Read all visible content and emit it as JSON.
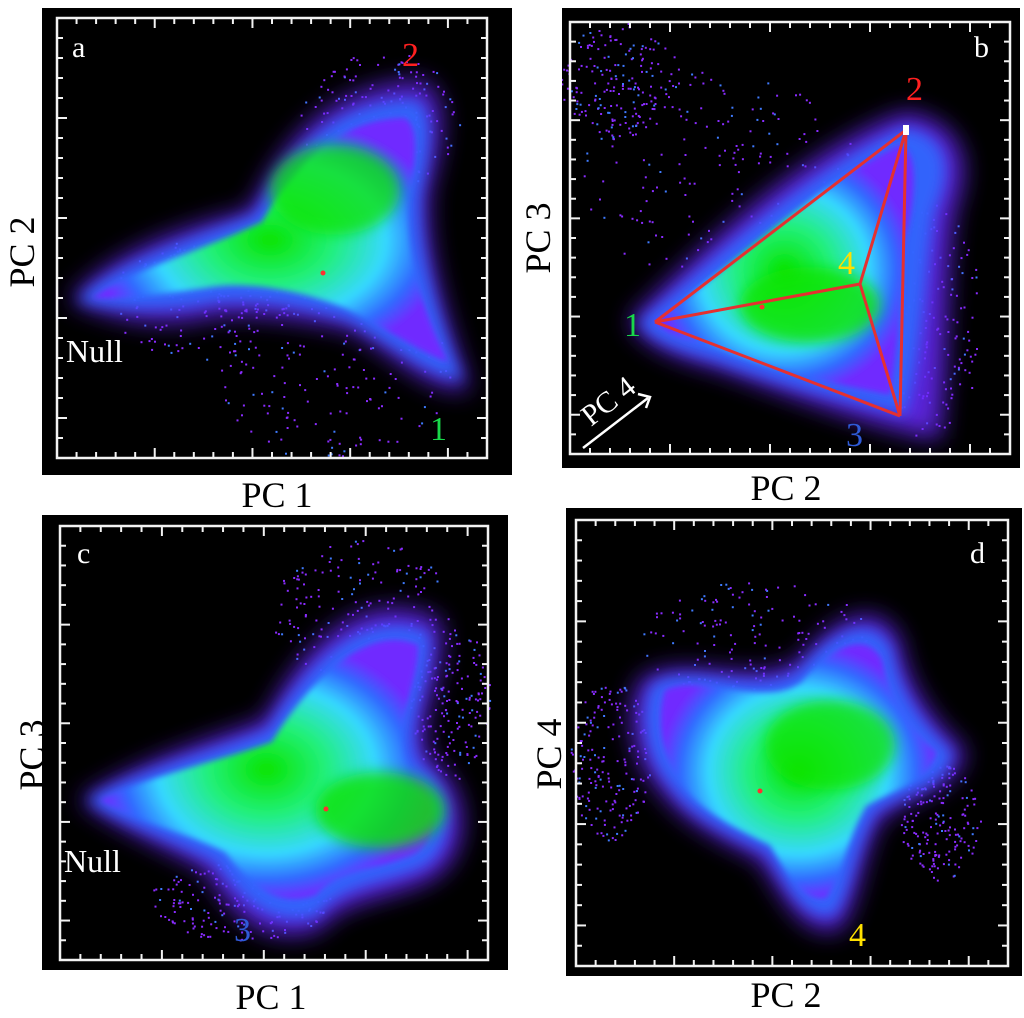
{
  "chart_data": [
    {
      "type": "scatter",
      "panel": "a",
      "xlabel": "PC 1",
      "ylabel": "PC 2",
      "colormap": [
        "#7b2cff",
        "#2f6bff",
        "#35d7ff",
        "#19f07a",
        "#06e000"
      ],
      "annotations": [
        {
          "text": "2",
          "color": "#ff2020",
          "position": "top-right"
        },
        {
          "text": "1",
          "color": "#19d84a",
          "position": "bottom-right"
        },
        {
          "text": "Null",
          "color": "#ffffff",
          "position": "left"
        }
      ]
    },
    {
      "type": "scatter",
      "panel": "b",
      "xlabel": "PC 2",
      "ylabel": "PC 3",
      "colormap": [
        "#7b2cff",
        "#2f6bff",
        "#35d7ff",
        "#19f07a",
        "#06e000"
      ],
      "annotations": [
        {
          "text": "2",
          "color": "#ff2020",
          "position": "top-right"
        },
        {
          "text": "1",
          "color": "#19d84a",
          "position": "left"
        },
        {
          "text": "3",
          "color": "#2f5bd8",
          "position": "bottom-right"
        },
        {
          "text": "4",
          "color": "#ffe000",
          "position": "center"
        },
        {
          "text": "PC 4",
          "color": "#ffffff",
          "position": "bottom-left-arrow"
        }
      ],
      "overlay": "red tetrahedron edges connecting vertices 1, 2, 3 and 4"
    },
    {
      "type": "scatter",
      "panel": "c",
      "xlabel": "PC 1",
      "ylabel": "PC 3",
      "colormap": [
        "#7b2cff",
        "#2f6bff",
        "#35d7ff",
        "#19f07a",
        "#06e000"
      ],
      "annotations": [
        {
          "text": "3",
          "color": "#2f5bd8",
          "position": "bottom"
        },
        {
          "text": "Null",
          "color": "#ffffff",
          "position": "left"
        }
      ]
    },
    {
      "type": "scatter",
      "panel": "d",
      "xlabel": "PC 2",
      "ylabel": "PC 4",
      "colormap": [
        "#7b2cff",
        "#2f6bff",
        "#35d7ff",
        "#19f07a",
        "#06e000"
      ],
      "annotations": [
        {
          "text": "4",
          "color": "#ffe000",
          "position": "bottom"
        }
      ]
    }
  ],
  "colors": {
    "background": "#000000",
    "axis": "#f2f2f2",
    "edge": "#e53030"
  }
}
